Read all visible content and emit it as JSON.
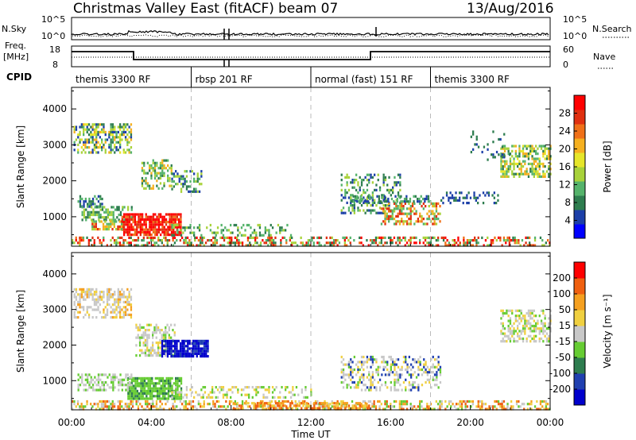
{
  "header": {
    "title": "Christmas Valley East (fitACF)",
    "beam": "beam 07",
    "date": "13/Aug/2016"
  },
  "noise_panel": {
    "left_label": "N.Sky",
    "right_label": "N.Search",
    "left_ticks": [
      "10^5",
      "10^0"
    ],
    "right_ticks": [
      "10^5",
      "10^0"
    ]
  },
  "freq_panel": {
    "left_label_1": "Freq.",
    "left_label_2": "[MHz]",
    "right_label": "Nave",
    "left_ticks": [
      "18",
      "8"
    ],
    "right_ticks": [
      "60",
      "0"
    ]
  },
  "cpid": {
    "label": "CPID",
    "segments": [
      {
        "name": "themis 3300 RF",
        "start_hour": 0
      },
      {
        "name": "rbsp 201 RF",
        "start_hour": 6
      },
      {
        "name": "normal (fast) 151 RF",
        "start_hour": 12
      },
      {
        "name": "themis 3300 RF",
        "start_hour": 18
      }
    ]
  },
  "chart_data": [
    {
      "type": "heatmap",
      "title": "Power",
      "ylabel": "Slant Range [km]",
      "ylim": [
        180,
        4600
      ],
      "yticks": [
        "1000",
        "2000",
        "3000",
        "4000"
      ],
      "xlim_hours": [
        0,
        24
      ],
      "colorbar_label": "Power [dB]",
      "colorbar_ticks": [
        "4",
        "8",
        "12",
        "16",
        "20",
        "24",
        "28"
      ],
      "colorbar_colors": [
        "#0000ff",
        "#1c3fa8",
        "#2e7d4f",
        "#55b36b",
        "#a8d23a",
        "#e6e62a",
        "#f5b020",
        "#f07018",
        "#e03010",
        "#ff0000"
      ]
    },
    {
      "type": "heatmap",
      "title": "Velocity",
      "ylabel": "Slant Range [km]",
      "ylim": [
        180,
        4600
      ],
      "yticks": [
        "1000",
        "2000",
        "3000",
        "4000"
      ],
      "xlim_hours": [
        0,
        24
      ],
      "colorbar_label": "Velocity [m s⁻¹]",
      "colorbar_ticks": [
        "200",
        "100",
        "50",
        "15",
        "-15",
        "-50",
        "-100",
        "-200"
      ],
      "colorbar_colors": [
        "#0000cc",
        "#2040b0",
        "#2e7d4f",
        "#66cc33",
        "#c8c8c8",
        "#f0d040",
        "#f5a020",
        "#f06010",
        "#ff0000"
      ]
    }
  ],
  "x_axis": {
    "ticks": [
      "00:00",
      "04:00",
      "08:00",
      "12:00",
      "16:00",
      "20:00",
      "00:00"
    ],
    "label": "Time UT"
  }
}
